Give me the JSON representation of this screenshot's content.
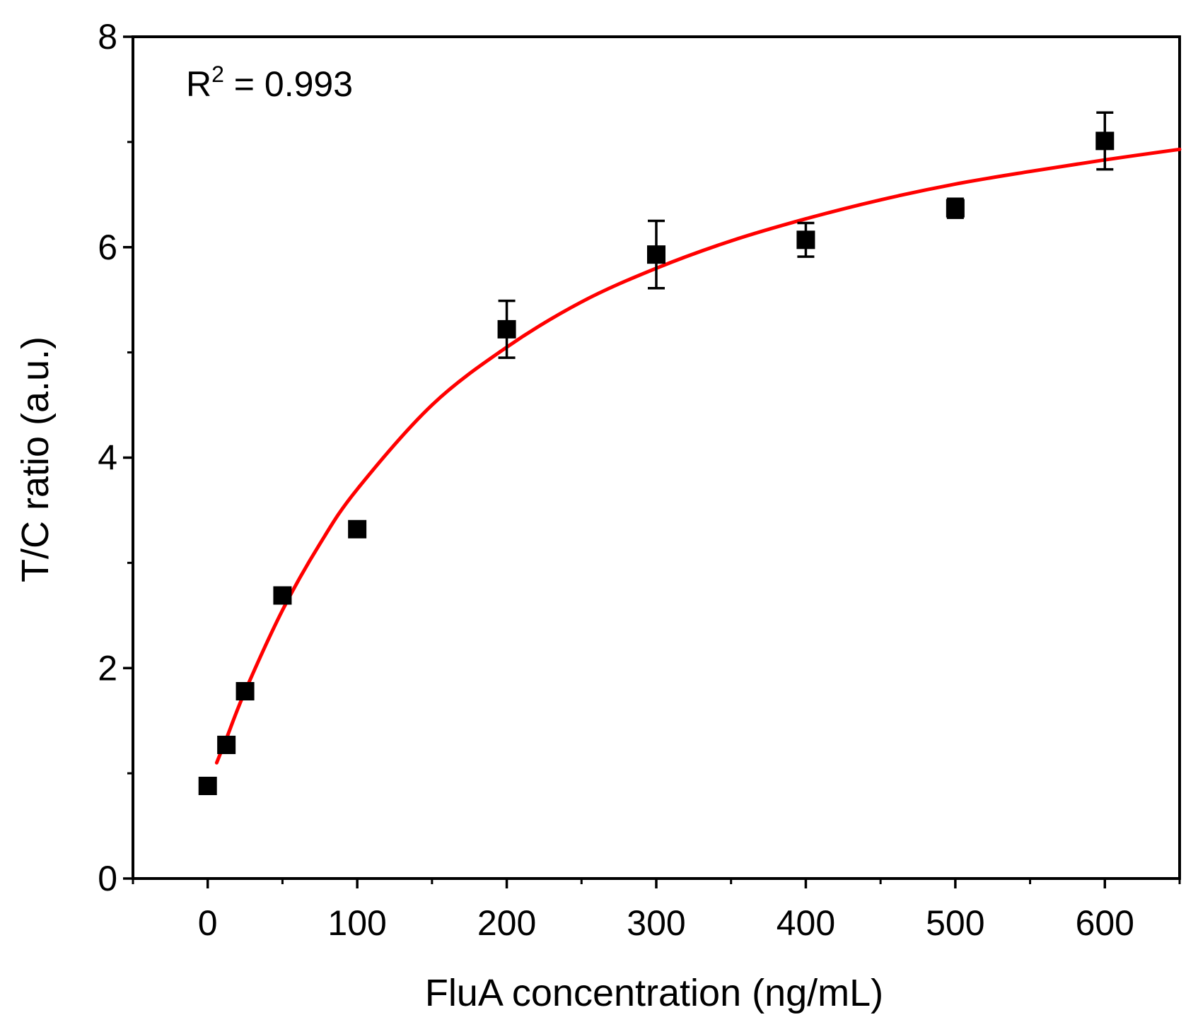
{
  "chart_data": {
    "type": "scatter",
    "xlabel": "FluA concentration (ng/mL)",
    "ylabel": "T/C ratio (a.u.)",
    "xlim": [
      -50,
      650
    ],
    "ylim": [
      0,
      8
    ],
    "x_ticks": [
      0,
      100,
      200,
      300,
      400,
      500,
      600
    ],
    "x_tick_labels": [
      "0",
      "100",
      "200",
      "300",
      "400",
      "500",
      "600"
    ],
    "y_ticks": [
      0,
      2,
      4,
      6,
      8
    ],
    "y_tick_labels": [
      "0",
      "2",
      "4",
      "6",
      "8"
    ],
    "annotation": {
      "prefix": "R",
      "superscript": "2",
      "suffix": " = 0.993"
    },
    "grid": false,
    "legend": "none",
    "series": [
      {
        "kind": "points-with-error-bars",
        "color": "#000000",
        "marker": "square",
        "x": [
          0,
          12.5,
          25,
          50,
          100,
          200,
          300,
          400,
          500,
          600
        ],
        "y": [
          0.88,
          1.27,
          1.78,
          2.69,
          3.32,
          5.22,
          5.93,
          6.07,
          6.37,
          7.01
        ],
        "error": [
          0.05,
          0.05,
          0.05,
          0.05,
          0.05,
          0.27,
          0.32,
          0.16,
          0.09,
          0.27
        ]
      },
      {
        "kind": "fit-curve",
        "color": "#ff0000",
        "x": [
          6,
          12.5,
          25,
          50,
          75,
          100,
          150,
          200,
          250,
          300,
          350,
          400,
          450,
          500,
          550,
          600,
          650
        ],
        "y": [
          1.1,
          1.33,
          1.78,
          2.55,
          3.18,
          3.7,
          4.5,
          5.05,
          5.48,
          5.8,
          6.06,
          6.27,
          6.45,
          6.6,
          6.72,
          6.83,
          6.93
        ]
      }
    ]
  }
}
